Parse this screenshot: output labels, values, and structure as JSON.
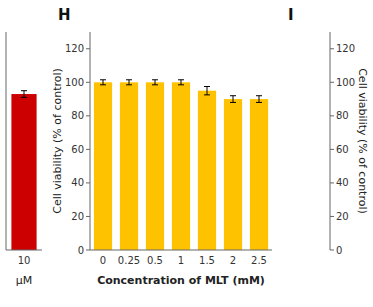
{
  "chart_data": [
    {
      "type": "bar",
      "categories": [
        "10"
      ],
      "values": [
        93
      ],
      "errors": [
        2.0
      ],
      "color": "#CC0000",
      "xlabel": "μM",
      "ylim": [
        0,
        130
      ],
      "tick_labels": "x"
    },
    {
      "type": "bar",
      "title": "H",
      "categories": [
        "0",
        "0.25",
        "0.5",
        "1",
        "1.5",
        "2",
        "2.5"
      ],
      "values": [
        100,
        100,
        100,
        100,
        95,
        90,
        90
      ],
      "errors": [
        1.5,
        1.5,
        1.5,
        1.5,
        2.5,
        2.0,
        2.0
      ],
      "color": "#FFC200",
      "xlabel": "Concentration of MLT (mM)",
      "ylabel": "Cell viability (% of control)",
      "ylim": [
        0,
        130
      ],
      "yticks": [
        0,
        20,
        40,
        60,
        80,
        100,
        120
      ]
    },
    {
      "type": "bar",
      "title": "I",
      "ylabel": "Cell viability (% of control)",
      "ylim": [
        0,
        130
      ],
      "yticks": [
        0,
        20,
        40,
        60,
        80,
        100,
        120
      ],
      "tick_labels": "y"
    }
  ]
}
